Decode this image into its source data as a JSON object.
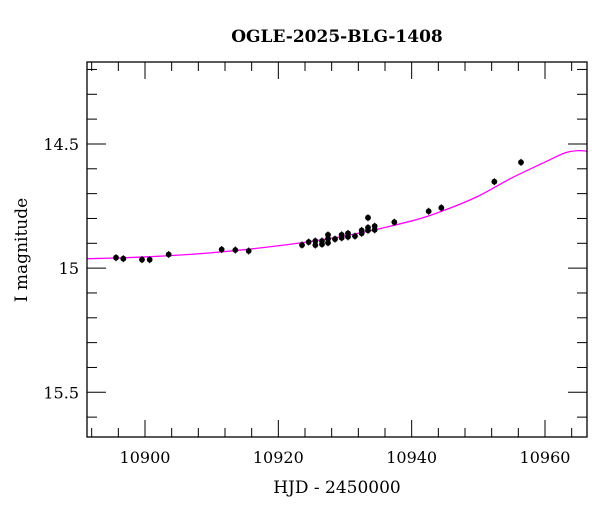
{
  "chart_data": {
    "type": "scatter",
    "title": "OGLE-2025-BLG-1408",
    "xlabel": "HJD - 2450000",
    "ylabel": "I magnitude",
    "xlim": [
      10891.3,
      10966.3
    ],
    "ylim": [
      15.68,
      14.17
    ],
    "y_inverted": true,
    "grid": false,
    "x_ticks": [
      10900,
      10920,
      10940,
      10960
    ],
    "x_tick_labels": [
      "10900",
      "10920",
      "10940",
      "10960"
    ],
    "y_ticks": [
      14.5,
      15,
      15.5
    ],
    "y_tick_labels": [
      "14.5",
      "15",
      "15.5"
    ],
    "x_minor_step": 4,
    "y_minor_step": 0.1,
    "colors": {
      "points": "#000000",
      "model": "#ff00ff"
    },
    "series": [
      {
        "name": "data",
        "kind": "points",
        "x": [
          10895.65,
          10896.75,
          10899.55,
          10900.7,
          10903.55,
          10911.5,
          10913.55,
          10915.55,
          10923.55,
          10924.55,
          10925.55,
          10925.55,
          10926.55,
          10926.55,
          10927.45,
          10927.45,
          10927.45,
          10928.5,
          10929.5,
          10929.5,
          10930.45,
          10930.45,
          10931.5,
          10932.5,
          10932.5,
          10933.45,
          10933.45,
          10933.45,
          10934.45,
          10934.45,
          10937.4,
          10942.55,
          10944.45,
          10952.4,
          10956.4
        ],
        "y": [
          14.958,
          14.962,
          14.966,
          14.966,
          14.945,
          14.925,
          14.927,
          14.931,
          14.907,
          14.895,
          14.891,
          14.907,
          14.891,
          14.904,
          14.866,
          14.882,
          14.898,
          14.883,
          14.866,
          14.878,
          14.86,
          14.874,
          14.871,
          14.848,
          14.86,
          14.797,
          14.837,
          14.848,
          14.831,
          14.846,
          14.815,
          14.771,
          14.757,
          14.652,
          14.574
        ]
      },
      {
        "name": "model",
        "kind": "line",
        "x": [
          10891.3,
          10900,
          10910,
          10920,
          10930,
          10940,
          10945,
          10950,
          10955,
          10960,
          10963,
          10965,
          10966.3
        ],
        "y": [
          14.962,
          14.955,
          14.938,
          14.91,
          14.87,
          14.81,
          14.766,
          14.71,
          14.637,
          14.573,
          14.536,
          14.527,
          14.529
        ]
      }
    ]
  }
}
